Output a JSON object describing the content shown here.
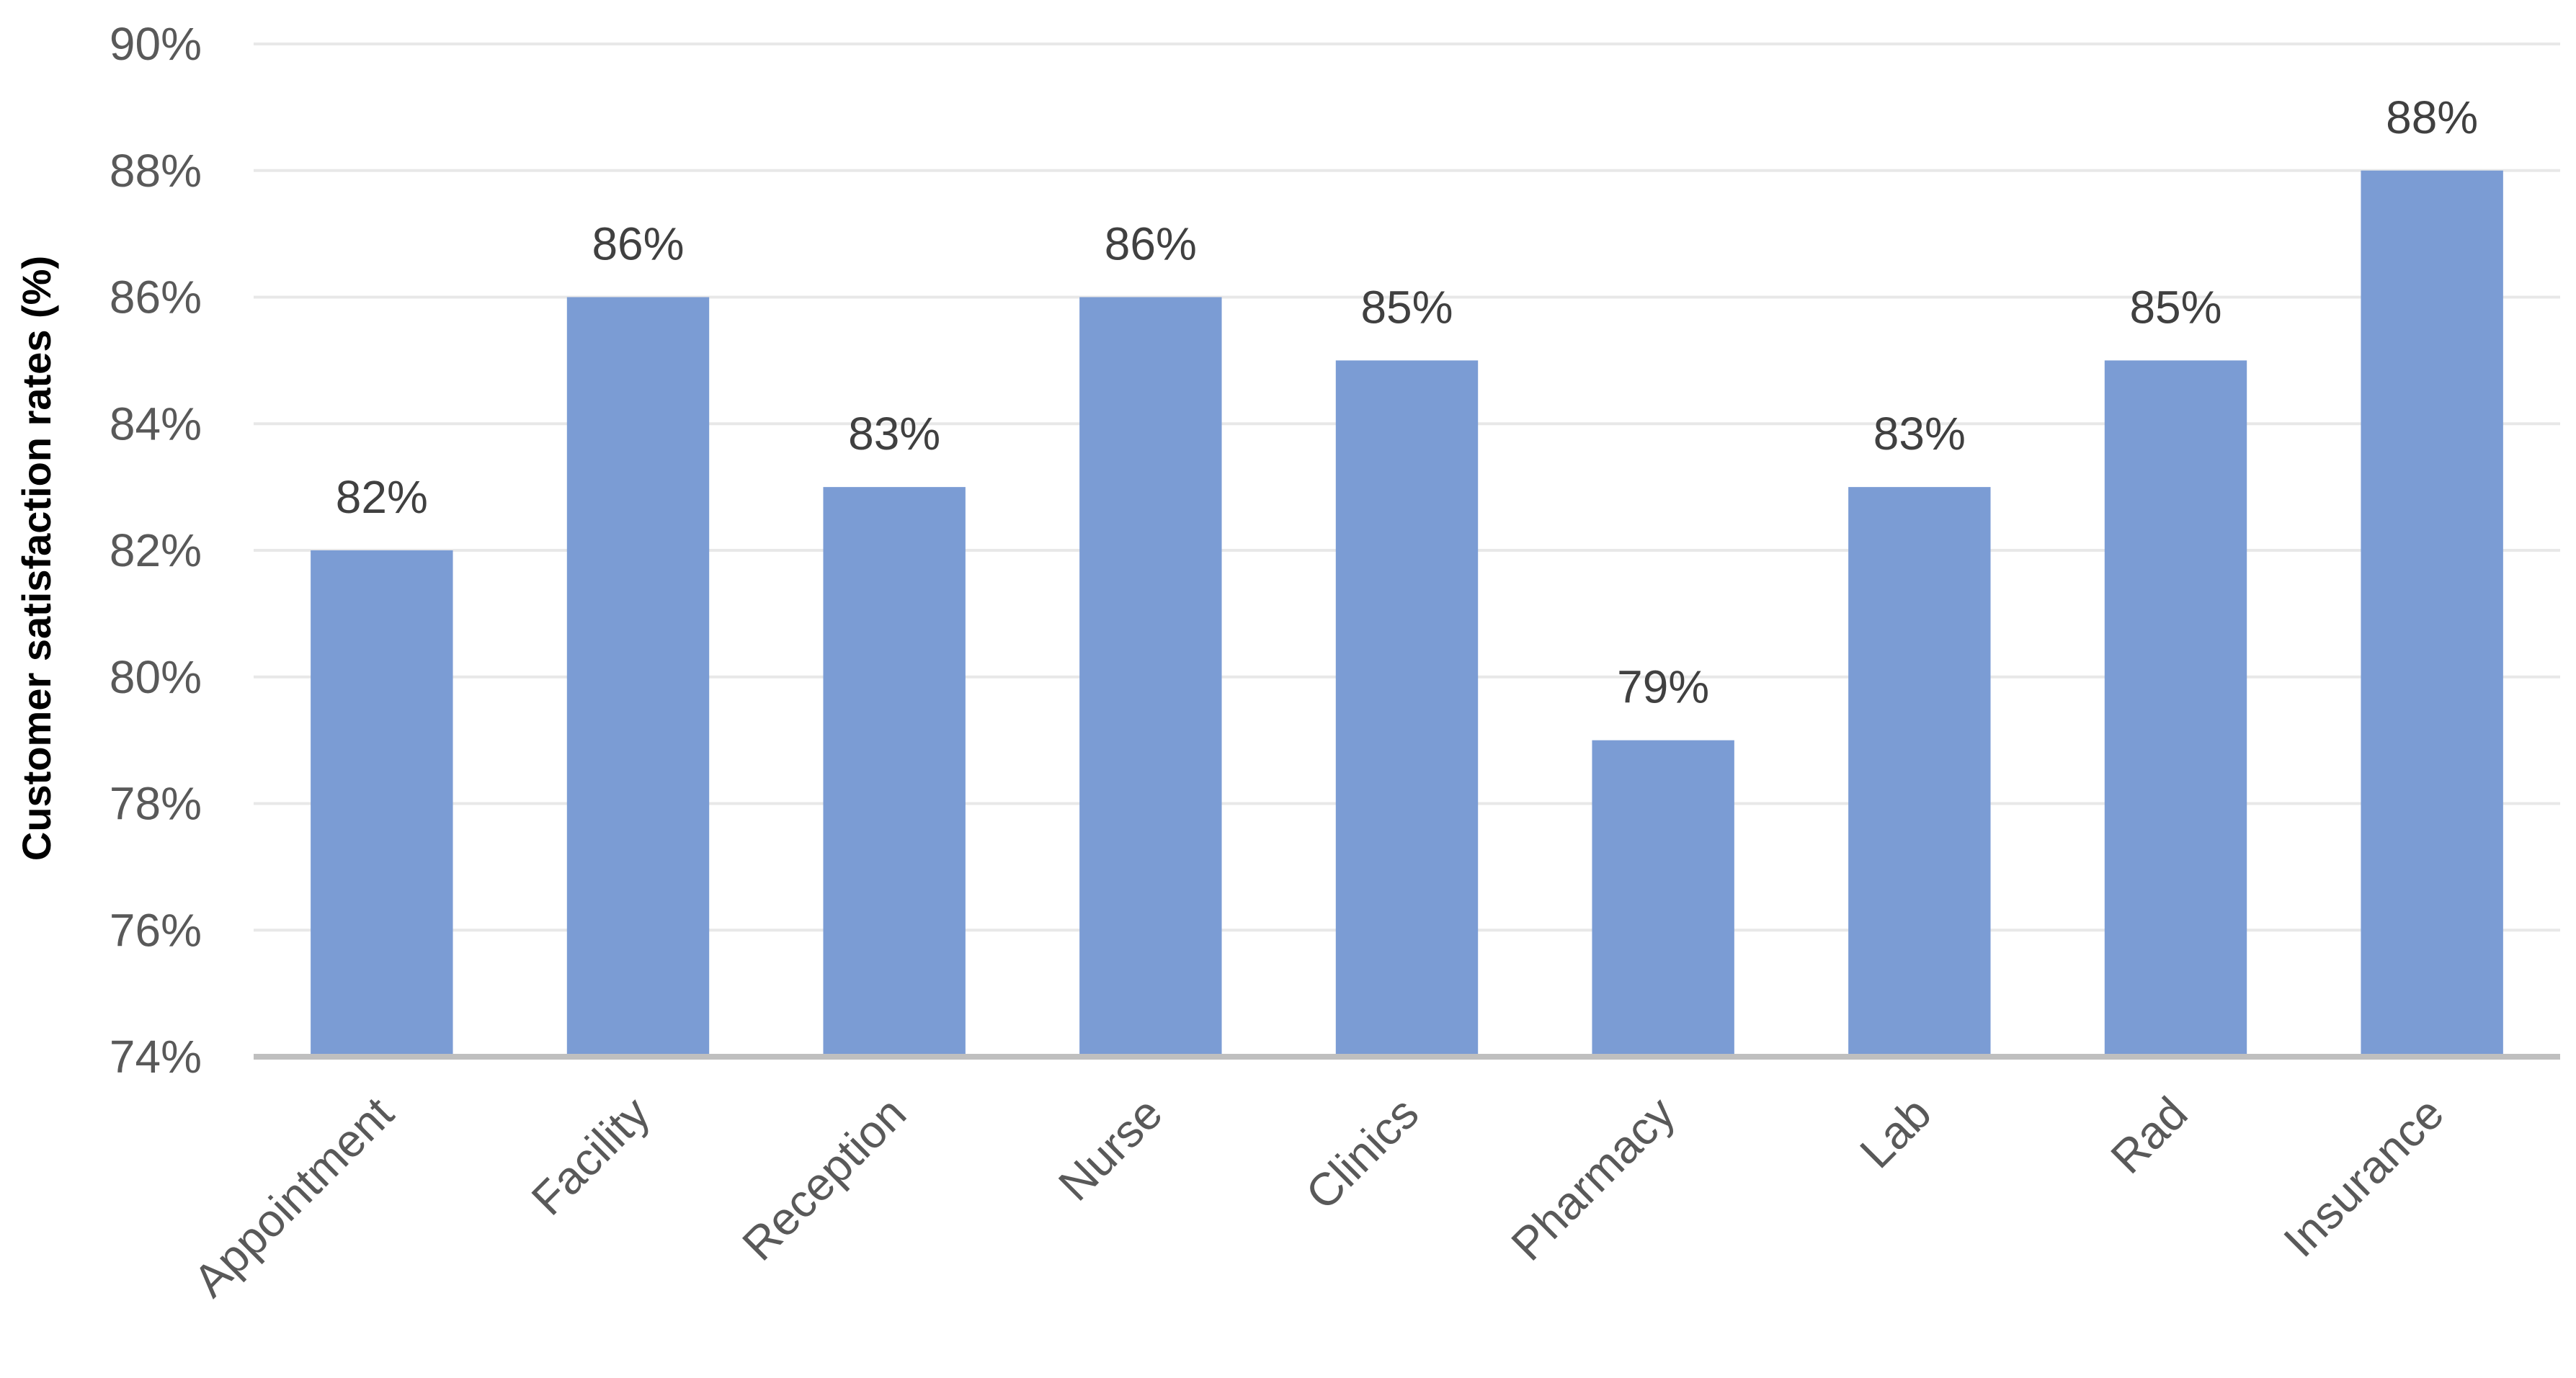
{
  "chart_data": {
    "type": "bar",
    "title": "",
    "xlabel": "",
    "ylabel": "Customer satisfaction rates (%)",
    "categories": [
      "Appointment",
      "Facility",
      "Reception",
      "Nurse",
      "Clinics",
      "Pharmacy",
      "Lab",
      "Rad",
      "Insurance"
    ],
    "series": [
      {
        "values": [
          82,
          86,
          83,
          86,
          85,
          79,
          83,
          85,
          88
        ],
        "data_labels": [
          "82%",
          "86%",
          "83%",
          "86%",
          "85%",
          "79%",
          "83%",
          "85%",
          "88%"
        ]
      }
    ],
    "ylim": [
      74,
      90
    ],
    "yticks": [
      74,
      76,
      78,
      80,
      82,
      84,
      86,
      88,
      90
    ],
    "ytick_labels": [
      "74%",
      "76%",
      "78%",
      "80%",
      "82%",
      "84%",
      "86%",
      "88%",
      "90%"
    ],
    "grid": true,
    "legend": "none",
    "colors": {
      "bar": "#7b9cd4",
      "grid": "#e8e8e8",
      "axis": "#bfbfbf"
    }
  }
}
